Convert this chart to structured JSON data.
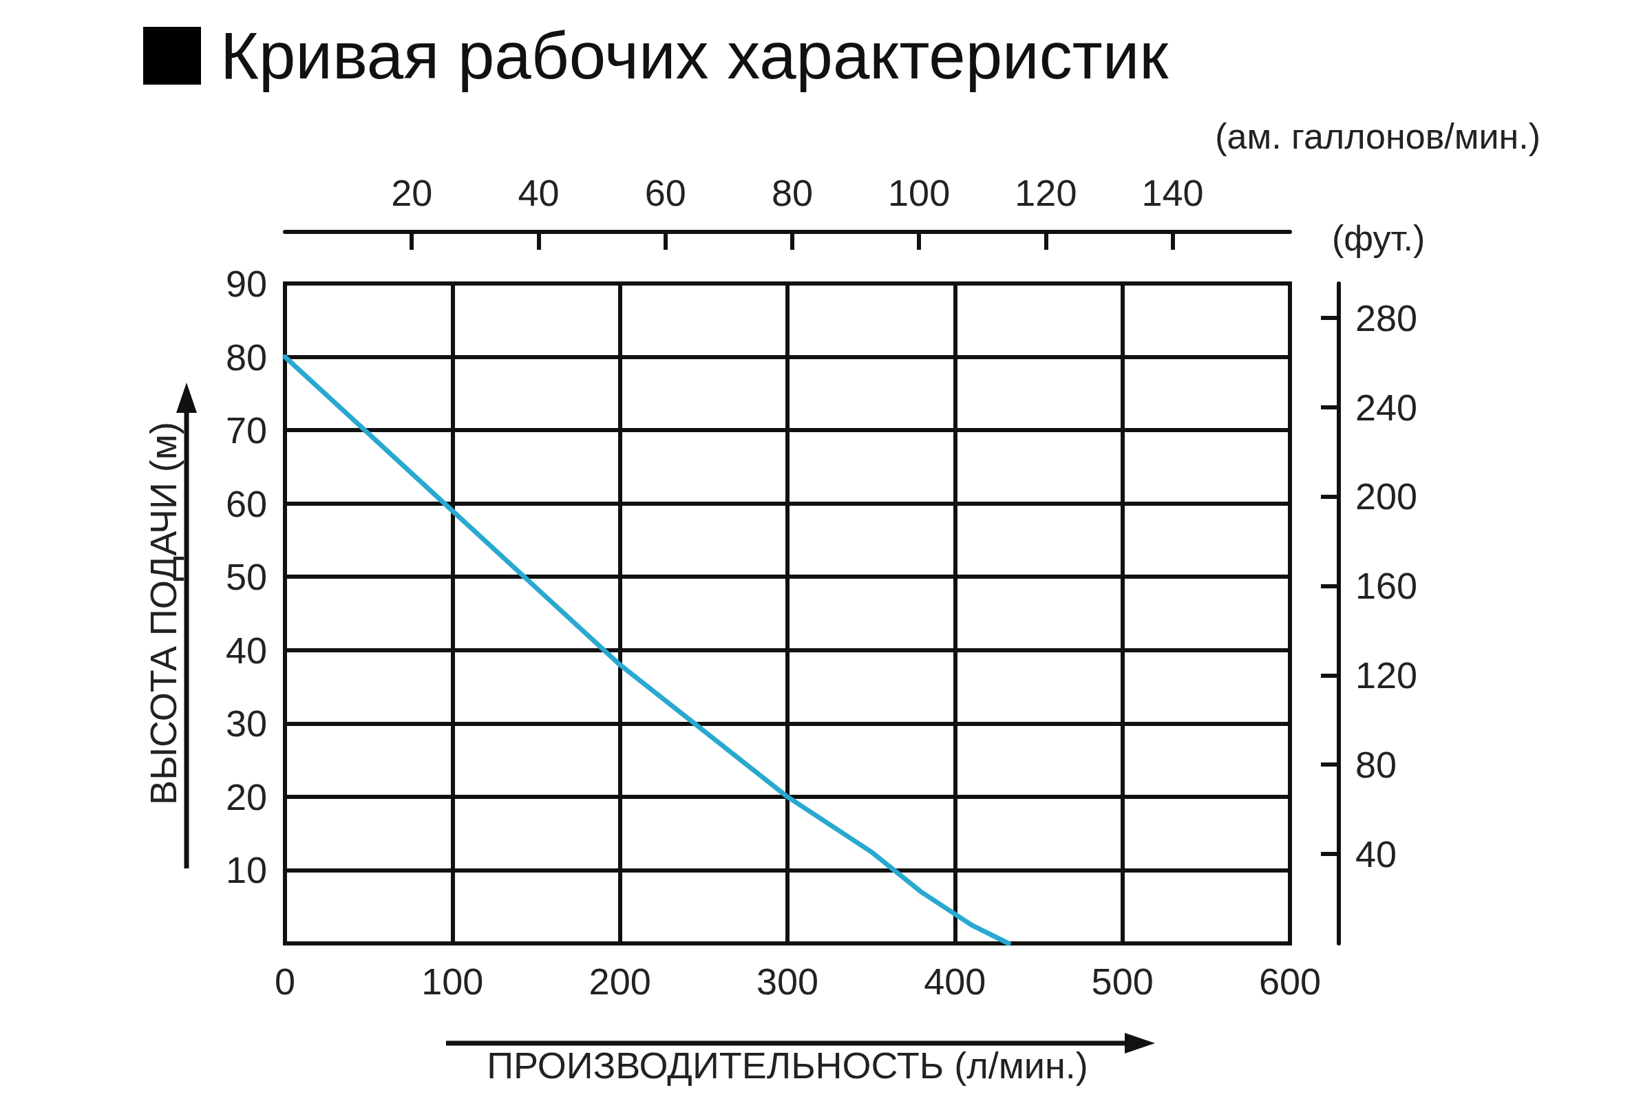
{
  "chart_data": {
    "type": "line",
    "title": "Кривая рабочих характеристик",
    "xlabel": "ПРОИЗВОДИТЕЛЬНОСТЬ (л/мин.)",
    "ylabel": "ВЫСОТА ПОДАЧИ (м)",
    "x2label": "(ам. галлонов/мин.)",
    "y2label": "(фут.)",
    "xlim": [
      0,
      600
    ],
    "xticks": [
      0,
      100,
      200,
      300,
      400,
      500,
      600
    ],
    "ylim": [
      0,
      90
    ],
    "yticks": [
      10,
      20,
      30,
      40,
      50,
      60,
      70,
      80,
      90
    ],
    "x2lim": [
      0,
      158.5
    ],
    "x2ticks": [
      20,
      40,
      60,
      80,
      100,
      120,
      140
    ],
    "y2lim": [
      0,
      295.3
    ],
    "y2ticks": [
      40,
      80,
      120,
      160,
      200,
      240,
      280
    ],
    "series": [
      {
        "color": "#29a8d0",
        "x": [
          0,
          50,
          100,
          150,
          200,
          250,
          300,
          350,
          380,
          410,
          432
        ],
        "values": [
          80,
          69.5,
          59,
          48.5,
          38,
          29,
          20,
          12.5,
          7,
          2.5,
          0
        ]
      }
    ],
    "grid": true,
    "marker": "none",
    "line_style": "solid"
  }
}
